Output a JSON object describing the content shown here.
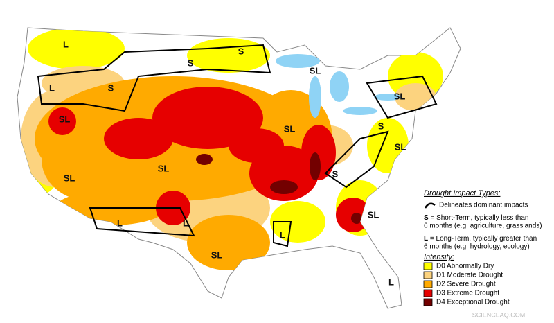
{
  "map": {
    "region_labels": [
      "L",
      "S",
      "S",
      "SL",
      "L",
      "S",
      "SL",
      "SL",
      "SL",
      "S",
      "SL",
      "SL",
      "S",
      "SL",
      "L",
      "L",
      "SL",
      "L",
      "SL",
      "L"
    ],
    "legend": {
      "impact_title": "Drought Impact Types:",
      "delineates": "Delineates dominant impacts",
      "short_key": "S",
      "short_line1": " = Short-Term, typically less than",
      "short_line2": "6 months (e.g. agriculture, grasslands)",
      "long_key": "L",
      "long_line1": " = Long-Term, typically greater than",
      "long_line2": "6 months (e.g. hydrology, ecology)",
      "intensity_title": "Intensity:",
      "items": [
        {
          "label": "D0 Abnormally Dry",
          "color": "#ffff00"
        },
        {
          "label": "D1 Moderate Drought",
          "color": "#fcd37f"
        },
        {
          "label": "D2 Severe Drought",
          "color": "#ffaa00"
        },
        {
          "label": "D3 Extreme Drought",
          "color": "#e60000"
        },
        {
          "label": "D4 Exceptional Drought",
          "color": "#730000"
        }
      ]
    },
    "watermark": "SCIENCEAQ.COM"
  }
}
